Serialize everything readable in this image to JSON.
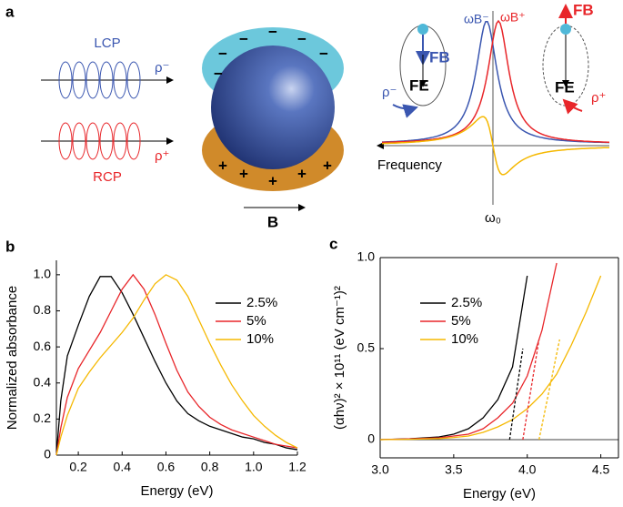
{
  "diagram": {
    "label": "a",
    "lcp": "LCP",
    "rho_minus": "ρ⁻",
    "rcp": "RCP",
    "rho_plus": "ρ⁺",
    "negative_sign": "−",
    "positive_sign": "+",
    "field": "B",
    "omega_b_minus": "ωB⁻",
    "omega_b_plus": "ωB⁺",
    "force_b": "FB",
    "force_e": "FE",
    "frequency": "Frequency",
    "omega_0": "ω₀"
  },
  "chart_data": [
    {
      "type": "line",
      "label": "b",
      "xlabel": "Energy (eV)",
      "ylabel": "Normalized absorbance",
      "x": [
        0.1,
        0.12,
        0.15,
        0.2,
        0.25,
        0.3,
        0.35,
        0.4,
        0.45,
        0.5,
        0.55,
        0.6,
        0.65,
        0.7,
        0.75,
        0.8,
        0.85,
        0.9,
        0.95,
        1.0,
        1.05,
        1.1,
        1.15,
        1.2
      ],
      "series": [
        {
          "name": "2.5%",
          "color": "#000000",
          "values": [
            0,
            0.3,
            0.55,
            0.72,
            0.88,
            0.99,
            0.99,
            0.9,
            0.78,
            0.65,
            0.52,
            0.4,
            0.3,
            0.23,
            0.19,
            0.16,
            0.14,
            0.12,
            0.1,
            0.09,
            0.07,
            0.06,
            0.04,
            0.03
          ]
        },
        {
          "name": "5%",
          "color": "#e8262a",
          "values": [
            0,
            0.15,
            0.32,
            0.48,
            0.58,
            0.68,
            0.8,
            0.92,
            1.0,
            0.92,
            0.78,
            0.62,
            0.47,
            0.35,
            0.27,
            0.21,
            0.17,
            0.14,
            0.12,
            0.1,
            0.08,
            0.06,
            0.05,
            0.04
          ]
        },
        {
          "name": "10%",
          "color": "#f5b800",
          "values": [
            0,
            0.1,
            0.22,
            0.37,
            0.46,
            0.54,
            0.61,
            0.68,
            0.76,
            0.86,
            0.95,
            1.0,
            0.97,
            0.88,
            0.75,
            0.62,
            0.5,
            0.39,
            0.3,
            0.22,
            0.16,
            0.11,
            0.07,
            0.04
          ]
        }
      ],
      "xlim": [
        0.1,
        1.2
      ],
      "ylim": [
        0,
        1.08
      ],
      "xticks": [
        0.2,
        0.4,
        0.6,
        0.8,
        {
          "value": 1,
          "label": "1.0"
        },
        1.2
      ],
      "yticks": [
        0,
        0.2,
        0.4,
        0.6,
        0.8,
        {
          "value": 1,
          "label": "1.0"
        }
      ]
    },
    {
      "type": "line",
      "label": "c",
      "xlabel": "Energy (eV)",
      "ylabel": "(αhν)² × 10¹¹ (eV cm⁻¹)²",
      "x": [
        3.0,
        3.2,
        3.4,
        3.5,
        3.6,
        3.7,
        3.8,
        3.9,
        4.0,
        4.1,
        4.2,
        4.3,
        4.4,
        4.5
      ],
      "series": [
        {
          "name": "2.5%",
          "color": "#000000",
          "values": [
            0,
            0.005,
            0.015,
            0.03,
            0.06,
            0.12,
            0.22,
            0.4,
            0.9,
            null,
            null,
            null,
            null,
            null
          ]
        },
        {
          "name": "5%",
          "color": "#e8262a",
          "values": [
            0,
            0.004,
            0.01,
            0.02,
            0.03,
            0.06,
            0.12,
            0.2,
            0.35,
            0.6,
            0.97,
            null,
            null,
            null
          ]
        },
        {
          "name": "10%",
          "color": "#f5b800",
          "values": [
            0,
            0.002,
            0.006,
            0.012,
            0.02,
            0.04,
            0.07,
            0.11,
            0.17,
            0.25,
            0.36,
            0.52,
            0.7,
            0.9
          ]
        }
      ],
      "fits": [
        {
          "color": "#000000",
          "x": [
            3.88,
            3.97
          ],
          "values": [
            0,
            0.5
          ]
        },
        {
          "color": "#e8262a",
          "x": [
            3.97,
            4.08
          ],
          "values": [
            0,
            0.55
          ]
        },
        {
          "color": "#f5b800",
          "x": [
            4.08,
            4.22
          ],
          "values": [
            0,
            0.55
          ]
        }
      ],
      "xlim": [
        3.0,
        4.62
      ],
      "ylim": [
        -0.1,
        1.0
      ],
      "xticks": [
        {
          "value": 3,
          "label": "3.0"
        },
        3.5,
        {
          "value": 4,
          "label": "4.0"
        },
        4.5
      ],
      "yticks": [
        0,
        0.5,
        {
          "value": 1,
          "label": "1.0"
        }
      ]
    }
  ]
}
